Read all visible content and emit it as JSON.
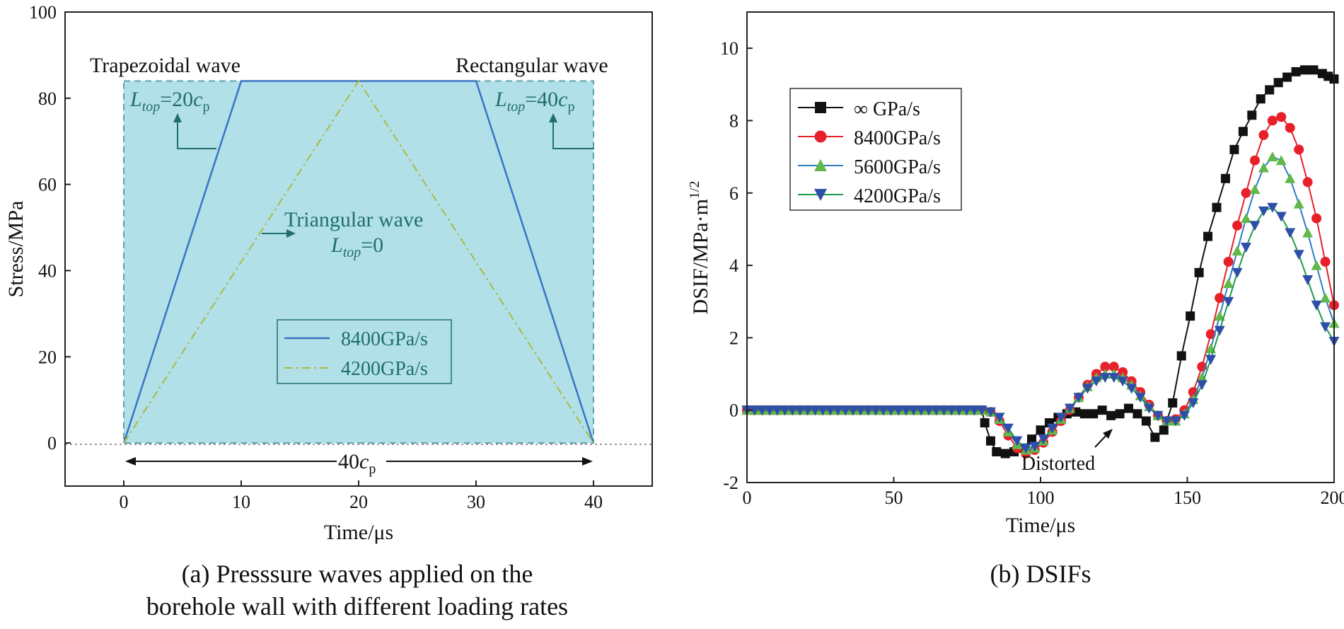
{
  "panel_a": {
    "caption_line1": "(a) Presssure waves applied on the",
    "caption_line2": "borehole wall with different loading rates"
  },
  "panel_b": {
    "caption": "(b) DSIFs"
  },
  "colors": {
    "shade": "#b2e0e8",
    "shade_border": "#5aa3a8",
    "annotation_teal": "#1f6f6d",
    "trap_line": "#3a73c4",
    "tri_line": "#a8bb3f",
    "s_inf": "#111111",
    "s_8400": "#e8202a",
    "s_5600": "#62b84a",
    "s_4200": "#2e4fa8",
    "line_8400_b": "#e8202a",
    "line_5600_b": "#2f7cc4",
    "line_4200_b": "#1f9a4a"
  },
  "chart_data": [
    {
      "type": "line",
      "title": "",
      "xlabel": "Time/μs",
      "ylabel": "Stress/MPa",
      "xlim": [
        -5,
        45
      ],
      "ylim": [
        -10,
        100
      ],
      "xticks": [
        0,
        10,
        20,
        30,
        40
      ],
      "yticks": [
        0,
        20,
        40,
        60,
        80,
        100
      ],
      "series": [
        {
          "name": "8400GPa/s",
          "x": [
            0,
            10,
            30,
            40
          ],
          "y": [
            0,
            84,
            84,
            0
          ],
          "style": "solid"
        },
        {
          "name": "4200GPa/s",
          "x": [
            0,
            20,
            40
          ],
          "y": [
            0,
            84,
            0
          ],
          "style": "dash-dot"
        }
      ],
      "rectangular_wave": {
        "x": [
          0,
          0,
          40,
          40
        ],
        "y": [
          0,
          84,
          84,
          0
        ]
      },
      "annotations": {
        "trapezoidal": "Trapezoidal wave",
        "rectangular": "Rectangular wave",
        "triangular": "Triangular wave",
        "l_top_trap": "L_top=20c_p",
        "l_top_rect": "L_top=40c_p",
        "l_top_tri": "L_top=0",
        "width_label": "40c_p",
        "l_var": "L",
        "top_sub": "top",
        "eq20": "=20",
        "eq40": "=40",
        "eq0": "=0",
        "c_var": "c",
        "p_sub": "p"
      },
      "legend": [
        "8400GPa/s",
        "4200GPa/s"
      ]
    },
    {
      "type": "scatter",
      "title": "",
      "xlabel": "Time/μs",
      "ylabel": "DSIF/MPa·m",
      "ylabel_exp": "1/2",
      "xlim": [
        0,
        200
      ],
      "ylim": [
        -2,
        11
      ],
      "xticks": [
        0,
        50,
        100,
        150,
        200
      ],
      "yticks": [
        -2,
        0,
        2,
        4,
        6,
        8,
        10
      ],
      "annotation": "Distorted",
      "legend": [
        "∞ GPa/s",
        "8400GPa/s",
        "5600GPa/s",
        "4200GPa/s"
      ],
      "series": [
        {
          "name": "∞ GPa/s",
          "marker": "square",
          "x": [
            0,
            80,
            81,
            83,
            85,
            88,
            91,
            94,
            97,
            100,
            103,
            106,
            109,
            112,
            115,
            118,
            121,
            124,
            127,
            130,
            133,
            136,
            139,
            142,
            145,
            148,
            151,
            154,
            157,
            160,
            163,
            166,
            169,
            172,
            175,
            178,
            181,
            184,
            187,
            190,
            193,
            196,
            200
          ],
          "y": [
            0,
            0,
            -0.35,
            -0.85,
            -1.15,
            -1.2,
            -1.15,
            -1.05,
            -0.8,
            -0.55,
            -0.35,
            -0.2,
            -0.1,
            -0.05,
            -0.1,
            -0.1,
            0.0,
            -0.15,
            -0.1,
            0.05,
            -0.1,
            -0.3,
            -0.75,
            -0.55,
            0.2,
            1.5,
            2.6,
            3.8,
            4.8,
            5.6,
            6.4,
            7.2,
            7.7,
            8.15,
            8.6,
            8.85,
            9.05,
            9.2,
            9.35,
            9.4,
            9.4,
            9.3,
            9.15
          ]
        },
        {
          "name": "8400GPa/s",
          "marker": "circle",
          "x": [
            0,
            80,
            83,
            86,
            89,
            92,
            95,
            98,
            101,
            104,
            107,
            110,
            113,
            116,
            119,
            122,
            125,
            128,
            131,
            134,
            137,
            140,
            143,
            146,
            149,
            152,
            155,
            158,
            161,
            164,
            167,
            170,
            173,
            176,
            179,
            182,
            185,
            188,
            191,
            194,
            197,
            200
          ],
          "y": [
            0,
            0,
            -0.05,
            -0.3,
            -0.7,
            -1.05,
            -1.2,
            -1.1,
            -0.9,
            -0.6,
            -0.3,
            0.0,
            0.35,
            0.7,
            1.0,
            1.2,
            1.2,
            1.05,
            0.8,
            0.5,
            0.15,
            -0.15,
            -0.3,
            -0.25,
            0.0,
            0.5,
            1.2,
            2.1,
            3.1,
            4.1,
            5.1,
            6.0,
            6.9,
            7.6,
            8.0,
            8.1,
            7.8,
            7.2,
            6.3,
            5.3,
            4.1,
            2.9
          ]
        },
        {
          "name": "5600GPa/s",
          "marker": "triangle-up",
          "x": [
            0,
            80,
            83,
            86,
            89,
            92,
            95,
            98,
            101,
            104,
            107,
            110,
            113,
            116,
            119,
            122,
            125,
            128,
            131,
            134,
            137,
            140,
            143,
            146,
            149,
            152,
            155,
            158,
            161,
            164,
            167,
            170,
            173,
            176,
            179,
            182,
            185,
            188,
            191,
            194,
            197,
            200
          ],
          "y": [
            0,
            0,
            -0.05,
            -0.25,
            -0.6,
            -0.95,
            -1.1,
            -1.05,
            -0.85,
            -0.55,
            -0.25,
            0.05,
            0.35,
            0.65,
            0.9,
            1.0,
            1.0,
            0.9,
            0.7,
            0.4,
            0.1,
            -0.15,
            -0.3,
            -0.3,
            -0.1,
            0.3,
            0.9,
            1.7,
            2.6,
            3.5,
            4.4,
            5.3,
            6.1,
            6.7,
            7.0,
            6.9,
            6.4,
            5.7,
            4.9,
            4.0,
            3.1,
            2.4
          ]
        },
        {
          "name": "4200GPa/s",
          "marker": "triangle-down",
          "x": [
            0,
            80,
            83,
            86,
            89,
            92,
            95,
            98,
            101,
            104,
            107,
            110,
            113,
            116,
            119,
            122,
            125,
            128,
            131,
            134,
            137,
            140,
            143,
            146,
            149,
            152,
            155,
            158,
            161,
            164,
            167,
            170,
            173,
            176,
            179,
            182,
            185,
            188,
            191,
            194,
            197,
            200
          ],
          "y": [
            0,
            0,
            -0.05,
            -0.2,
            -0.5,
            -0.85,
            -1.05,
            -1.0,
            -0.8,
            -0.5,
            -0.2,
            0.05,
            0.35,
            0.6,
            0.8,
            0.9,
            0.9,
            0.8,
            0.6,
            0.35,
            0.05,
            -0.15,
            -0.3,
            -0.3,
            -0.15,
            0.2,
            0.7,
            1.4,
            2.2,
            3.0,
            3.8,
            4.5,
            5.1,
            5.5,
            5.6,
            5.35,
            4.9,
            4.3,
            3.6,
            2.9,
            2.3,
            1.9
          ]
        }
      ]
    }
  ]
}
